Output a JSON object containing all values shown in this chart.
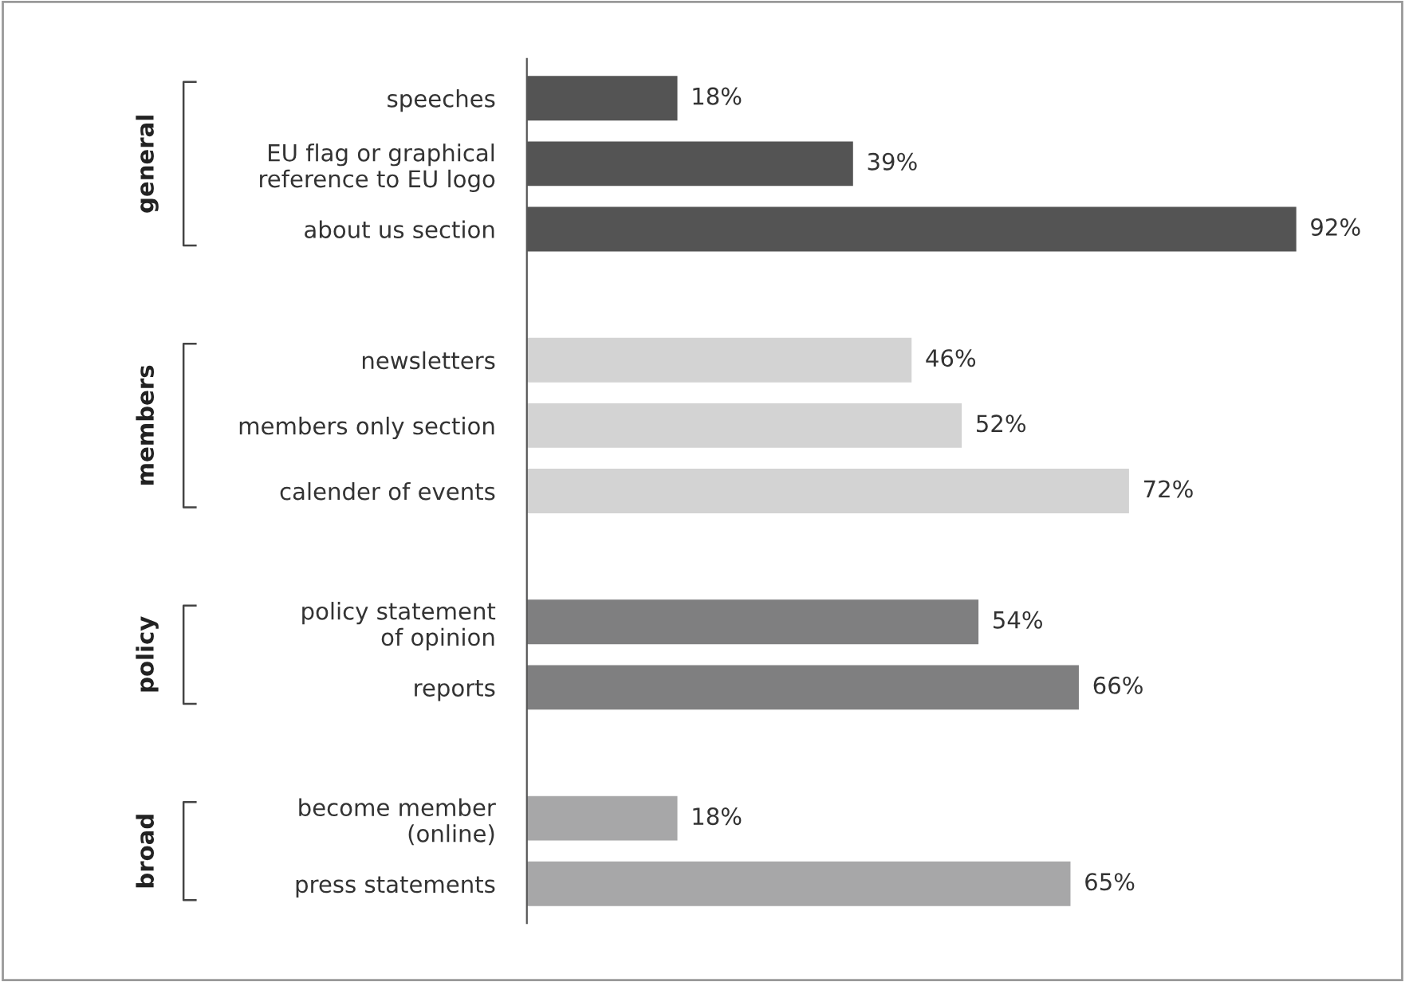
{
  "chart_data": {
    "type": "bar",
    "orientation": "horizontal",
    "categories": [
      "speeches",
      "EU flag or graphical\nreference to EU logo",
      "about us section",
      null,
      "newsletters",
      "members only section",
      "calender of events",
      null,
      "policy statement\nof opinion",
      "reports",
      null,
      "become member\n(online)",
      "press statements"
    ],
    "values": [
      18,
      39,
      92,
      null,
      46,
      52,
      72,
      null,
      54,
      66,
      null,
      18,
      65
    ],
    "colors": [
      "#545454",
      "#545454",
      "#545454",
      null,
      "#d3d3d3",
      "#d3d3d3",
      "#d3d3d3",
      null,
      "#7f7f80",
      "#7f7f80",
      null,
      "#a7a7a8",
      "#a7a7a8"
    ],
    "value_labels": [
      "18%",
      "39%",
      "92%",
      null,
      "46%",
      "52%",
      "72%",
      null,
      "54%",
      "66%",
      null,
      "18%",
      "65%"
    ],
    "annotations": [
      "general",
      "members",
      "policy",
      "broad"
    ]
  }
}
